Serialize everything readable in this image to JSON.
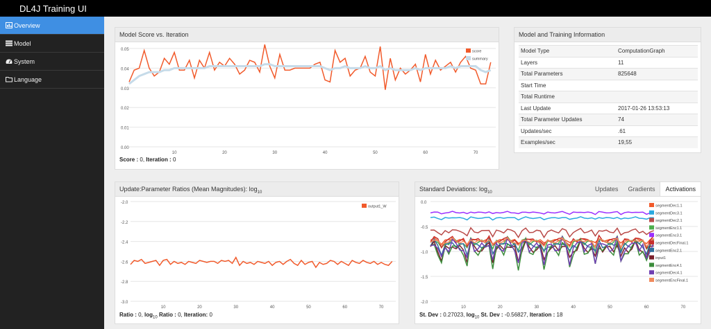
{
  "app": {
    "title": "DL4J Training UI"
  },
  "sidebar": {
    "items": [
      {
        "label": "Overview",
        "icon": "chart-icon",
        "active": true
      },
      {
        "label": "Model",
        "icon": "list-icon",
        "active": false
      },
      {
        "label": "System",
        "icon": "dashboard-icon",
        "active": false
      },
      {
        "label": "Language",
        "icon": "folder-icon",
        "active": false
      }
    ]
  },
  "score_panel": {
    "title": "Model Score vs. Iteration",
    "footer": {
      "score_label": "Score :",
      "score_value": "0",
      "iter_label": "Iteration :",
      "iter_value": "0"
    },
    "chart_data": {
      "type": "line",
      "xlim": [
        1,
        74
      ],
      "ylim": [
        0,
        0.05
      ],
      "xticks": [
        10,
        20,
        30,
        40,
        50,
        60,
        70
      ],
      "yticks": [
        0.0,
        0.01,
        0.02,
        0.03,
        0.04,
        0.05
      ],
      "ytick_labels": [
        "0.00",
        "0.01",
        "0.02",
        "0.03",
        "0.04",
        "0.05"
      ],
      "legend": "top-right",
      "series": [
        {
          "name": "score",
          "color": "#f15a2b",
          "values": [
            0.033,
            0.039,
            0.04,
            0.049,
            0.04,
            0.036,
            0.038,
            0.045,
            0.042,
            0.048,
            0.039,
            0.039,
            0.044,
            0.035,
            0.044,
            0.04,
            0.048,
            0.039,
            0.043,
            0.041,
            0.045,
            0.042,
            0.037,
            0.039,
            0.044,
            0.043,
            0.038,
            0.052,
            0.041,
            0.035,
            0.047,
            0.039,
            0.039,
            0.04,
            0.04,
            0.04,
            0.04,
            0.042,
            0.043,
            0.034,
            0.033,
            0.049,
            0.043,
            0.045,
            0.036,
            0.039,
            0.04,
            0.046,
            0.038,
            0.036,
            0.051,
            0.029,
            0.045,
            0.034,
            0.04,
            0.037,
            0.039,
            0.042,
            0.033,
            0.047,
            0.037,
            0.044,
            0.039,
            0.041,
            0.043,
            0.038,
            0.043,
            0.046,
            0.04,
            0.039,
            0.032,
            0.032,
            0.043
          ]
        },
        {
          "name": "summary",
          "color": "#c6dbe9",
          "values": [
            0.032,
            0.034,
            0.036,
            0.037,
            0.038,
            0.038,
            0.038,
            0.039,
            0.039,
            0.04,
            0.04,
            0.04,
            0.04,
            0.04,
            0.04,
            0.04,
            0.041,
            0.041,
            0.041,
            0.041,
            0.041,
            0.041,
            0.041,
            0.041,
            0.041,
            0.041,
            0.041,
            0.042,
            0.042,
            0.041,
            0.041,
            0.041,
            0.041,
            0.041,
            0.041,
            0.041,
            0.041,
            0.041,
            0.041,
            0.04,
            0.039,
            0.04,
            0.04,
            0.041,
            0.04,
            0.04,
            0.04,
            0.041,
            0.04,
            0.04,
            0.041,
            0.039,
            0.04,
            0.039,
            0.039,
            0.039,
            0.039,
            0.04,
            0.039,
            0.04,
            0.04,
            0.04,
            0.04,
            0.04,
            0.041,
            0.04,
            0.041,
            0.041,
            0.041,
            0.041,
            0.039,
            0.038,
            0.039
          ]
        }
      ]
    }
  },
  "info_panel": {
    "title": "Model and Training Information",
    "rows": [
      {
        "label": "Model Type",
        "value": "ComputationGraph"
      },
      {
        "label": "Layers",
        "value": "11"
      },
      {
        "label": "Total Parameters",
        "value": "825648"
      },
      {
        "label": "Start Time",
        "value": ""
      },
      {
        "label": "Total Runtime",
        "value": ""
      },
      {
        "label": "Last Update",
        "value": "2017-01-26 13:53:13"
      },
      {
        "label": "Total Parameter Updates",
        "value": "74"
      },
      {
        "label": "Updates/sec",
        "value": ".61"
      },
      {
        "label": "Examples/sec",
        "value": "19,55"
      }
    ]
  },
  "ratio_panel": {
    "title": "Update:Parameter Ratios (Mean Magnitudes): log",
    "title_sub": "10",
    "footer": {
      "ratio_label": "Ratio :",
      "ratio_value": "0",
      "log_label": "log",
      "log_sub": "10",
      "log_ratio_label": "Ratio :",
      "log_ratio_value": "0",
      "iter_label": "Iteration:",
      "iter_value": "0"
    },
    "chart_data": {
      "type": "line",
      "xlim": [
        1,
        74
      ],
      "ylim": [
        -3.0,
        -2.0
      ],
      "xticks": [
        10,
        20,
        30,
        40,
        50,
        60,
        70
      ],
      "yticks": [
        -3.0,
        -2.8,
        -2.6,
        -2.4,
        -2.2,
        -2.0
      ],
      "ytick_labels": [
        "-3.0",
        "-2.8",
        "-2.6",
        "-2.4",
        "-2.2",
        "-2.0"
      ],
      "legend": "top-right",
      "series": [
        {
          "name": "output1_W",
          "color": "#f15a2b",
          "values": [
            -2.63,
            -2.59,
            -2.6,
            -2.58,
            -2.62,
            -2.61,
            -2.6,
            -2.59,
            -2.64,
            -2.59,
            -2.58,
            -2.63,
            -2.6,
            -2.62,
            -2.61,
            -2.63,
            -2.6,
            -2.61,
            -2.62,
            -2.59,
            -2.6,
            -2.61,
            -2.6,
            -2.6,
            -2.62,
            -2.59,
            -2.6,
            -2.59,
            -2.62,
            -2.56,
            -2.64,
            -2.6,
            -2.62,
            -2.61,
            -2.63,
            -2.6,
            -2.61,
            -2.62,
            -2.6,
            -2.64,
            -2.61,
            -2.6,
            -2.63,
            -2.6,
            -2.58,
            -2.62,
            -2.64,
            -2.59,
            -2.63,
            -2.61,
            -2.6,
            -2.66,
            -2.61,
            -2.63,
            -2.62,
            -2.59,
            -2.6,
            -2.63,
            -2.6,
            -2.62,
            -2.64,
            -2.59,
            -2.61,
            -2.62,
            -2.59,
            -2.61,
            -2.62,
            -2.6,
            -2.63,
            -2.61,
            -2.63,
            -2.64,
            -2.6
          ]
        }
      ]
    }
  },
  "std_panel": {
    "title": "Standard Deviations: log",
    "title_sub": "10",
    "tabs": [
      {
        "label": "Updates"
      },
      {
        "label": "Gradients"
      },
      {
        "label": "Activations",
        "active": true
      }
    ],
    "footer": {
      "std_label": "St. Dev :",
      "std_value": "0.27023",
      "log_label": "log",
      "log_sub": "10",
      "log_std_label": "St. Dev :",
      "log_std_value": "-0.56827",
      "iter_label": "Iteration :",
      "iter_value": "18"
    },
    "chart_data": {
      "type": "line",
      "xlim": [
        1,
        74
      ],
      "ylim": [
        -2.0,
        0.0
      ],
      "xticks": [
        10,
        20,
        30,
        40,
        50,
        60,
        70
      ],
      "yticks": [
        -2.0,
        -1.5,
        -1.0,
        -0.5,
        0.0
      ],
      "ytick_labels": [
        "-2.0",
        "-1.5",
        "-1.0",
        "-0.5",
        "0.0"
      ],
      "legend": "right",
      "series": [
        {
          "name": "segmentDec1.1",
          "color": "#f15a2b",
          "base": -0.78,
          "amp": 0.02
        },
        {
          "name": "segmentDec3.1",
          "color": "#29a9e0",
          "base": -0.33,
          "amp": 0.01
        },
        {
          "name": "segmentDec2.1",
          "color": "#b94a48",
          "base": -0.6,
          "amp": 0.03
        },
        {
          "name": "segmentEnc1.1",
          "color": "#4cae4c",
          "base": -0.82,
          "amp": 0.05
        },
        {
          "name": "segmentEnc3.1",
          "color": "#9b30ff",
          "base": -0.22,
          "amp": 0.01
        },
        {
          "name": "segmentDecFinal.1",
          "color": "#c9302c",
          "base": -0.78,
          "amp": 0.04
        },
        {
          "name": "segmentEnc2.1",
          "color": "#2f6e9e",
          "base": -0.88,
          "amp": 0.05
        },
        {
          "name": "input1",
          "color": "#7a1f2b",
          "base": -0.95,
          "amp": 0.07
        },
        {
          "name": "segmentEnc4.1",
          "color": "#3c8d3c",
          "base": -0.98,
          "amp": 0.1
        },
        {
          "name": "segmentDec4.1",
          "color": "#6f3fb2",
          "base": -0.92,
          "amp": 0.09
        },
        {
          "name": "segmentEncFinal.1",
          "color": "#f08a5d",
          "base": -0.8,
          "amp": 0.03
        }
      ]
    }
  }
}
